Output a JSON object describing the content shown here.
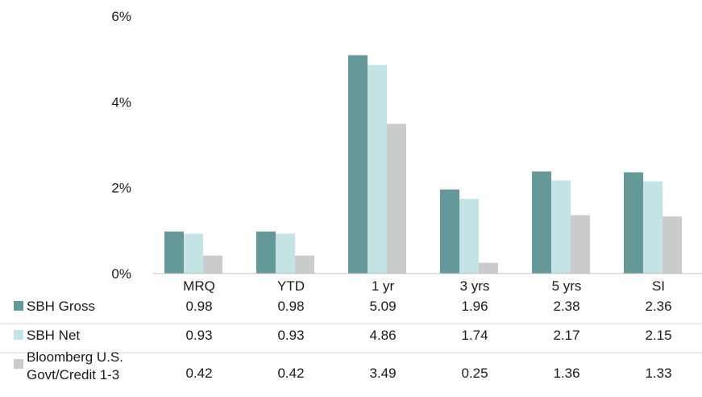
{
  "chart_data": {
    "type": "bar",
    "categories": [
      "MRQ",
      "YTD",
      "1 yr",
      "3 yrs",
      "5 yrs",
      "SI"
    ],
    "series": [
      {
        "name": "SBH Gross",
        "values": [
          0.98,
          0.98,
          5.09,
          1.96,
          2.38,
          2.36
        ],
        "color": "#649899"
      },
      {
        "name": "SBH Net",
        "values": [
          0.93,
          0.93,
          4.86,
          1.74,
          2.17,
          2.15
        ],
        "color": "#c4e3e4"
      },
      {
        "name_lines": [
          "Bloomberg U.S.",
          "Govt/Credit 1-3"
        ],
        "values": [
          0.42,
          0.42,
          3.49,
          0.25,
          1.36,
          1.33
        ],
        "color": "#c9cbcc"
      }
    ],
    "series_value_labels": [
      [
        "0.98",
        "0.98",
        "5.09",
        "1.96",
        "2.38",
        "2.36"
      ],
      [
        "0.93",
        "0.93",
        "4.86",
        "1.74",
        "2.17",
        "2.15"
      ],
      [
        "0.42",
        "0.42",
        "3.49",
        "0.25",
        "1.36",
        "1.33"
      ]
    ],
    "yticks": [
      0,
      2,
      4,
      6
    ],
    "ytick_labels": [
      "0%",
      "2%",
      "4%",
      "6%"
    ],
    "ylim": [
      0,
      6
    ],
    "grid": false,
    "legend": "data-table-below"
  }
}
